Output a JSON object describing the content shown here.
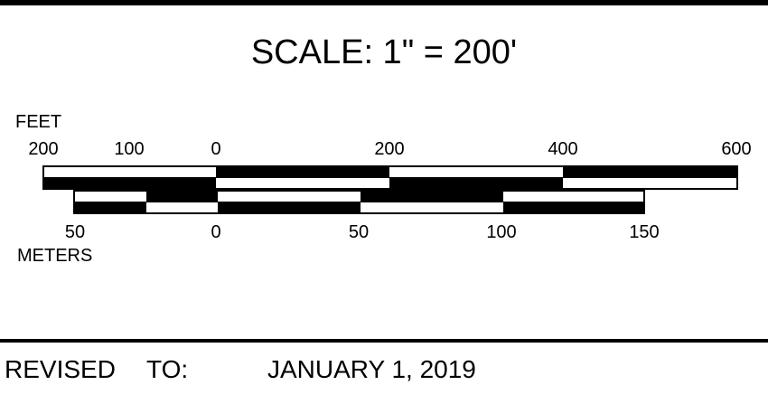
{
  "title": "SCALE: 1\" = 200'",
  "feet": {
    "label": "FEET",
    "ticks": [
      "200",
      "100",
      "0",
      "200",
      "400",
      "600"
    ]
  },
  "meters": {
    "label": "METERS",
    "ticks": [
      "50",
      "0",
      "50",
      "100",
      "150"
    ]
  },
  "footer": {
    "revised_label": "REVISED",
    "to_label": "TO:",
    "date": "JANUARY 1, 2019"
  },
  "colors": {
    "ink": "#000000",
    "paper": "#ffffff"
  }
}
